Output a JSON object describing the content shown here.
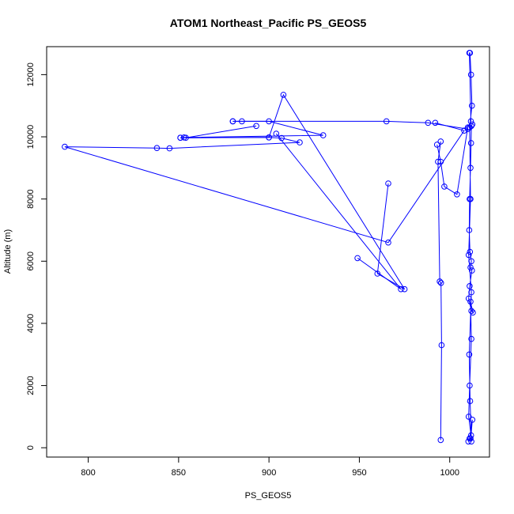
{
  "chart_data": {
    "type": "line",
    "title": "ATOM1 Northeast_Pacific PS_GEOS5",
    "xlabel": "PS_GEOS5",
    "ylabel": "Altitude (m)",
    "xlim": [
      777,
      1022
    ],
    "ylim": [
      -300,
      12900
    ],
    "xticks": [
      800,
      850,
      900,
      950,
      1000
    ],
    "yticks": [
      0,
      2000,
      4000,
      6000,
      8000,
      10000,
      12000
    ],
    "grid": false,
    "markers": "open-circle",
    "color": "#0000ff",
    "series": [
      {
        "x": [
          1012.5,
          1012.0,
          1011.8,
          1011.5,
          1011.0,
          1010.8,
          1011.2,
          1012.0,
          1011.5,
          1012.3,
          1011.0,
          1010.5,
          1012.0,
          1012.8,
          1011.5,
          1012.0,
          1011.0,
          1010.5,
          1011.8,
          1012.5,
          1011.0,
          1010.3,
          1011.5,
          1012.0,
          1011.3,
          1010.8,
          1012.0,
          1010.5,
          1011.5,
          1011.0,
          1012.3,
          1011.8,
          1011.2,
          1010.9,
          1011.7
        ],
        "y": [
          10400,
          10350,
          9800,
          9000,
          8000,
          7000,
          6300,
          6000,
          5800,
          5700,
          5200,
          4800,
          4400,
          4350,
          4700,
          3500,
          2000,
          1000,
          400,
          900,
          300,
          200,
          300,
          200,
          1500,
          3000,
          5000,
          6200,
          8000,
          10300,
          11000,
          12000,
          12700,
          12700,
          10500
        ]
      },
      {
        "x": [
          1010.0,
          988.0,
          965.0,
          880.0
        ],
        "y": [
          10250,
          10450,
          10500,
          10500
        ]
      },
      {
        "x": [
          880.0,
          885.0,
          900.0,
          930.0,
          853.0,
          851.0
        ],
        "y": [
          10500,
          10500,
          10500,
          10050,
          9980,
          9970
        ]
      },
      {
        "x": [
          851.0,
          900.0,
          908.0,
          975.0,
          960.0,
          966.0
        ],
        "y": [
          9970,
          9980,
          11350,
          5100,
          5600,
          8500
        ]
      },
      {
        "x": [
          893.0,
          854.0,
          900.0,
          907.0,
          917.0,
          845.0,
          838.0,
          787.0,
          966.0,
          1008.0,
          992.0
        ],
        "y": [
          10350,
          9970,
          9980,
          9960,
          9820,
          9630,
          9640,
          9680,
          6600,
          10200,
          10450
        ]
      },
      {
        "x": [
          993.0,
          995.0,
          997.0,
          1004.0,
          1010.0
        ],
        "y": [
          9750,
          9200,
          8400,
          8150,
          10300
        ]
      },
      {
        "x": [
          949.0,
          973.0,
          904.0
        ],
        "y": [
          6100,
          5100,
          10100
        ]
      },
      {
        "x": [
          995.0,
          993.5,
          994.5,
          995.2,
          995.5,
          995.0
        ],
        "y": [
          9850,
          9200,
          5350,
          5300,
          3300,
          250
        ]
      }
    ]
  }
}
